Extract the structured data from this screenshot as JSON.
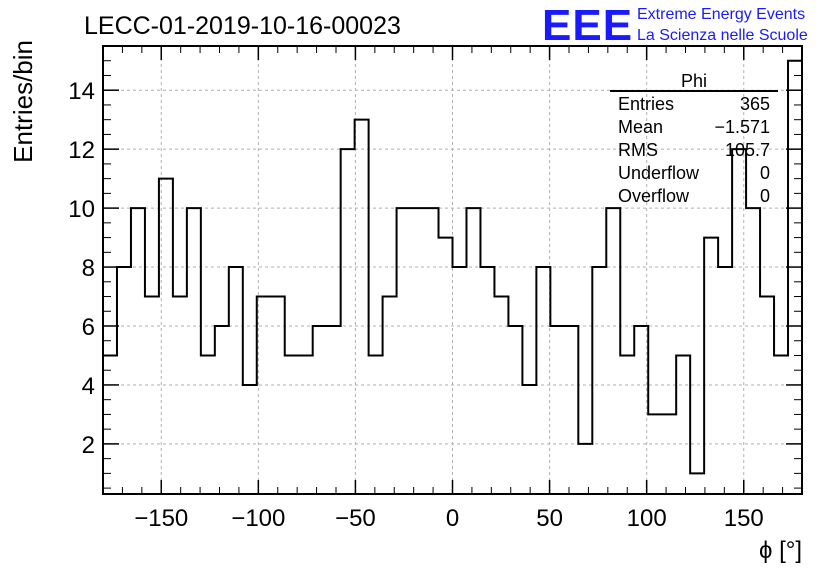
{
  "title": "LECC-01-2019-10-16-00023",
  "branding": {
    "logo_text": "EEE",
    "line1": "Extreme Energy Events",
    "line2": "La Scienza nelle Scuole",
    "color": "#1a1aff"
  },
  "stats_box": {
    "name": "Phi",
    "rows": [
      {
        "label": "Entries",
        "value": "365"
      },
      {
        "label": "Mean",
        "value": "−1.571"
      },
      {
        "label": "RMS",
        "value": "105.7"
      },
      {
        "label": "Underflow",
        "value": "0"
      },
      {
        "label": "Overflow",
        "value": "0"
      }
    ]
  },
  "chart_data": {
    "type": "histogram",
    "title": "LECC-01-2019-10-16-00023",
    "xlabel": "ϕ [°]",
    "ylabel": "Entries/bin",
    "xlim": [
      -180,
      180
    ],
    "ylim": [
      0.3,
      15.5
    ],
    "xticks": [
      -150,
      -100,
      -50,
      0,
      50,
      100,
      150
    ],
    "yticks": [
      2,
      4,
      6,
      8,
      10,
      12,
      14
    ],
    "xtick_labels": [
      "−150",
      "−100",
      "−50",
      "0",
      "50",
      "100",
      "150"
    ],
    "ytick_labels": [
      "2",
      "4",
      "6",
      "8",
      "10",
      "12",
      "14"
    ],
    "bin_edges_start": -180,
    "bin_width": 7.2,
    "values": [
      5,
      8,
      10,
      7,
      11,
      7,
      10,
      5,
      6,
      8,
      4,
      7,
      7,
      5,
      5,
      6,
      6,
      12,
      13,
      5,
      7,
      10,
      10,
      10,
      9,
      8,
      10,
      8,
      7,
      6,
      4,
      8,
      6,
      6,
      2,
      8,
      10,
      5,
      6,
      3,
      3,
      5,
      1,
      9,
      8,
      12,
      10,
      7,
      5,
      15
    ],
    "grid": true,
    "line_color": "#000000"
  }
}
